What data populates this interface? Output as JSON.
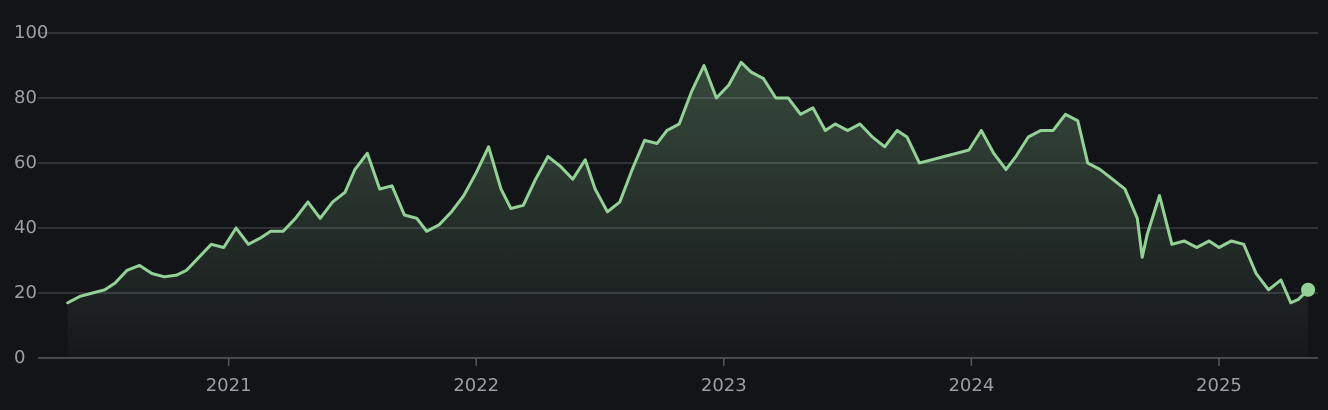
{
  "chart_data": {
    "type": "line",
    "x": [
      2020.35,
      2020.4,
      2020.45,
      2020.5,
      2020.54,
      2020.59,
      2020.64,
      2020.69,
      2020.74,
      2020.79,
      2020.83,
      2020.88,
      2020.93,
      2020.98,
      2021.03,
      2021.08,
      2021.13,
      2021.17,
      2021.22,
      2021.27,
      2021.32,
      2021.37,
      2021.42,
      2021.47,
      2021.51,
      2021.56,
      2021.61,
      2021.66,
      2021.71,
      2021.76,
      2021.8,
      2021.85,
      2021.9,
      2021.95,
      2022.0,
      2022.05,
      2022.1,
      2022.14,
      2022.19,
      2022.24,
      2022.29,
      2022.34,
      2022.39,
      2022.44,
      2022.48,
      2022.53,
      2022.58,
      2022.63,
      2022.68,
      2022.73,
      2022.77,
      2022.82,
      2022.87,
      2022.92,
      2022.97,
      2023.02,
      2023.07,
      2023.11,
      2023.16,
      2023.21,
      2023.26,
      2023.31,
      2023.36,
      2023.41,
      2023.45,
      2023.5,
      2023.55,
      2023.6,
      2023.65,
      2023.7,
      2023.74,
      2023.79,
      2023.84,
      2023.89,
      2023.94,
      2023.99,
      2024.04,
      2024.09,
      2024.14,
      2024.18,
      2024.23,
      2024.28,
      2024.33,
      2024.38,
      2024.43,
      2024.47,
      2024.52,
      2024.57,
      2024.62,
      2024.67,
      2024.69,
      2024.71,
      2024.76,
      2024.81,
      2024.86,
      2024.91,
      2024.96,
      2025.0,
      2025.05,
      2025.1,
      2025.15,
      2025.2,
      2025.25,
      2025.29,
      2025.32,
      2025.36
    ],
    "values": [
      17,
      19,
      20,
      21,
      23,
      27,
      28.5,
      26,
      25,
      25.5,
      27,
      31,
      35,
      34,
      40,
      35,
      37,
      39,
      39,
      43,
      48,
      43,
      48,
      51,
      58,
      63,
      52,
      53,
      44,
      43,
      39,
      41,
      45,
      50,
      57,
      65,
      52,
      46,
      47,
      55,
      62,
      59,
      55,
      61,
      52,
      45,
      48,
      58,
      67,
      66,
      70,
      72,
      82,
      90,
      80,
      84,
      91,
      88,
      86,
      80,
      80,
      75,
      77,
      70,
      72,
      70,
      72,
      68,
      65,
      70,
      68,
      60,
      61,
      62,
      63,
      64,
      70,
      63,
      58,
      62,
      68,
      70,
      70,
      75,
      73,
      60,
      58,
      55,
      52,
      43,
      31,
      38,
      50,
      35,
      36,
      34,
      36,
      34,
      36,
      35,
      26,
      21,
      24,
      17,
      18,
      21
    ],
    "color": "#93d196",
    "area": true,
    "grid": true,
    "xlim": [
      2020.23,
      2025.4
    ],
    "xticks": [
      2021,
      2022,
      2023,
      2024,
      2025
    ],
    "ylim": [
      0,
      100
    ],
    "yticks": [
      0,
      20,
      40,
      60,
      80,
      100
    ]
  }
}
